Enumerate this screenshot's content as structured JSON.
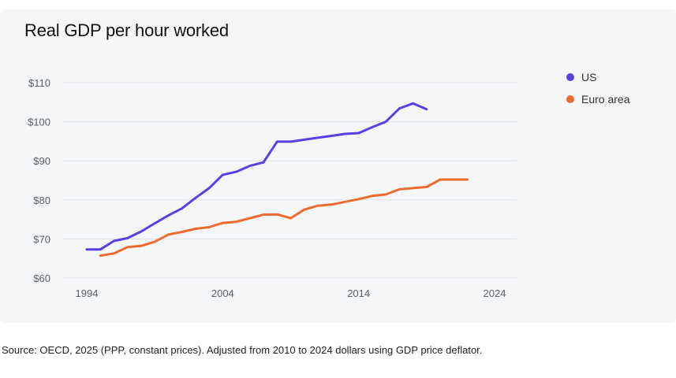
{
  "chart_data": {
    "type": "line",
    "title": "Real GDP per hour worked",
    "xlabel": "",
    "ylabel": "",
    "x_ticks": [
      1994,
      2004,
      2014,
      2024
    ],
    "y_ticks": [
      "$60",
      "$70",
      "$80",
      "$90",
      "$100",
      "$110"
    ],
    "y_tick_values": [
      60,
      70,
      80,
      90,
      100,
      110
    ],
    "xlim": [
      1994,
      2024
    ],
    "ylim": [
      60,
      110
    ],
    "grid": "horizontal",
    "legend_position": "right",
    "series": [
      {
        "name": "US",
        "color": "#5b3fe4",
        "x": [
          1994,
          1995,
          1996,
          1997,
          1998,
          1999,
          2000,
          2001,
          2002,
          2003,
          2004,
          2005,
          2006,
          2007,
          2008,
          2009,
          2010,
          2011,
          2012,
          2013,
          2014,
          2015,
          2016,
          2017,
          2018,
          2019,
          2020,
          2021,
          2022
        ],
        "values": [
          67.3,
          67.3,
          69.5,
          70.2,
          71.9,
          74.0,
          76.0,
          77.8,
          80.5,
          83.0,
          86.4,
          87.2,
          88.7,
          89.6,
          94.9,
          94.9,
          95.4,
          95.9,
          96.4,
          96.9,
          97.1,
          98.6,
          100.0,
          103.4,
          104.7,
          103.2,
          null,
          null,
          null
        ]
      },
      {
        "name": "Euro area",
        "color": "#ee6a2f",
        "x": [
          1995,
          1996,
          1997,
          1998,
          1999,
          2000,
          2001,
          2002,
          2003,
          2004,
          2005,
          2006,
          2007,
          2008,
          2009,
          2010,
          2011,
          2012,
          2013,
          2014,
          2015,
          2016,
          2017,
          2018,
          2019,
          2020,
          2021,
          2022
        ],
        "values": [
          65.7,
          66.3,
          67.9,
          68.2,
          69.3,
          71.1,
          71.8,
          72.6,
          73.0,
          74.1,
          74.4,
          75.3,
          76.2,
          76.3,
          75.3,
          77.5,
          78.5,
          78.8,
          79.5,
          80.2,
          81.0,
          81.4,
          82.7,
          83.0,
          83.3,
          85.2,
          85.2,
          85.2
        ]
      }
    ]
  },
  "legend": {
    "us_label": "US",
    "euro_label": "Euro area"
  },
  "source_note": "Source: OECD, 2025 (PPP, constant prices). Adjusted from 2010 to 2024 dollars using GDP price deflator."
}
